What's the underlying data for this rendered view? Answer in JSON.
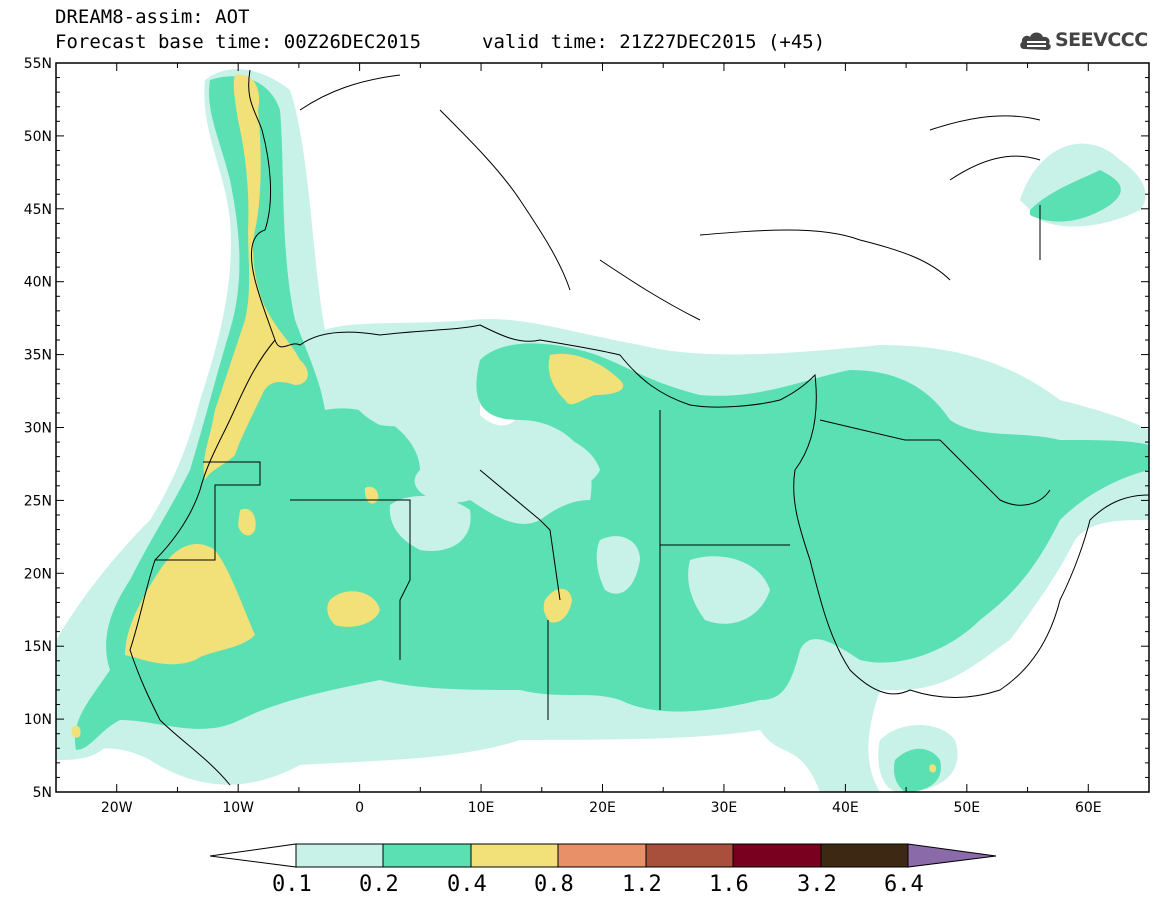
{
  "header": {
    "line1": "DREAM8-assim: AOT",
    "line2": "Forecast base time: 00Z26DEC2015",
    "line3": "valid time: 21Z27DEC2015 (+45)",
    "logo_text": "SEEVCCC"
  },
  "map": {
    "product": "AOT",
    "lon_range": [
      -25,
      65
    ],
    "lat_range": [
      5,
      55
    ],
    "lat_ticks": [
      "5N",
      "10N",
      "15N",
      "20N",
      "25N",
      "30N",
      "35N",
      "40N",
      "45N",
      "50N",
      "55N"
    ],
    "lon_ticks": [
      "20W",
      "10W",
      "0",
      "10E",
      "20E",
      "30E",
      "40E",
      "50E",
      "60E"
    ]
  },
  "colorbar": {
    "labels": [
      "0.1",
      "0.2",
      "0.4",
      "0.8",
      "1.2",
      "1.6",
      "3.2",
      "6.4"
    ],
    "colors": {
      "under": "#ffffff",
      "c1": "#c8f2e8",
      "c2": "#5be0b4",
      "c3": "#f2e078",
      "c4": "#e89068",
      "c5": "#a8503c",
      "c6": "#7a0020",
      "c7": "#3d2814",
      "over": "#8a6aa8"
    }
  }
}
